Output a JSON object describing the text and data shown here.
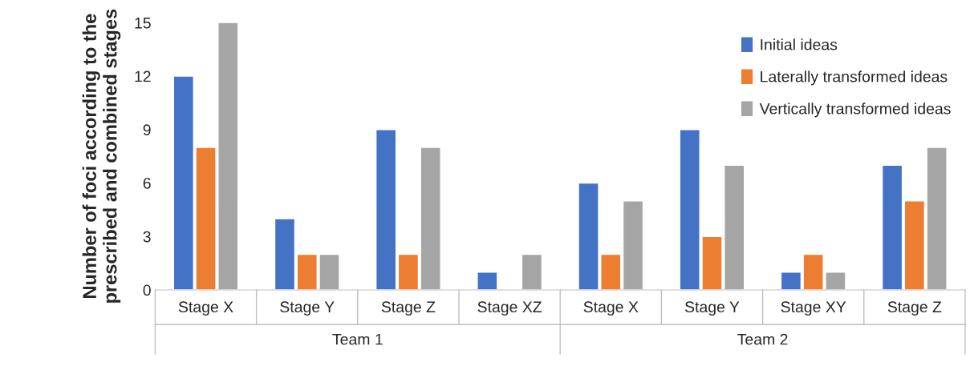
{
  "chart_data": {
    "type": "bar",
    "ylabel": "Number of foci according to the prescribed and combined stages",
    "categories": [
      "Stage X",
      "Stage Y",
      "Stage Z",
      "Stage XZ",
      "Stage X",
      "Stage Y",
      "Stage XY",
      "Stage Z"
    ],
    "series": [
      {
        "name": "Initial ideas",
        "color": "#4472c4",
        "values": [
          12,
          4,
          9,
          1,
          6,
          9,
          1,
          7
        ]
      },
      {
        "name": "Laterally transformed ideas",
        "color": "#ed7d31",
        "values": [
          8,
          2,
          2,
          null,
          2,
          3,
          2,
          5
        ]
      },
      {
        "name": "Vertically transformed ideas",
        "color": "#a5a5a5",
        "values": [
          15,
          2,
          8,
          2,
          5,
          7,
          1,
          8
        ]
      }
    ],
    "annotations": [
      "Team 1",
      "Team 2"
    ],
    "ylim": [
      0,
      15
    ],
    "yticks": [
      0,
      3,
      6,
      9,
      12,
      15
    ],
    "grid": false,
    "legend": "top right"
  }
}
